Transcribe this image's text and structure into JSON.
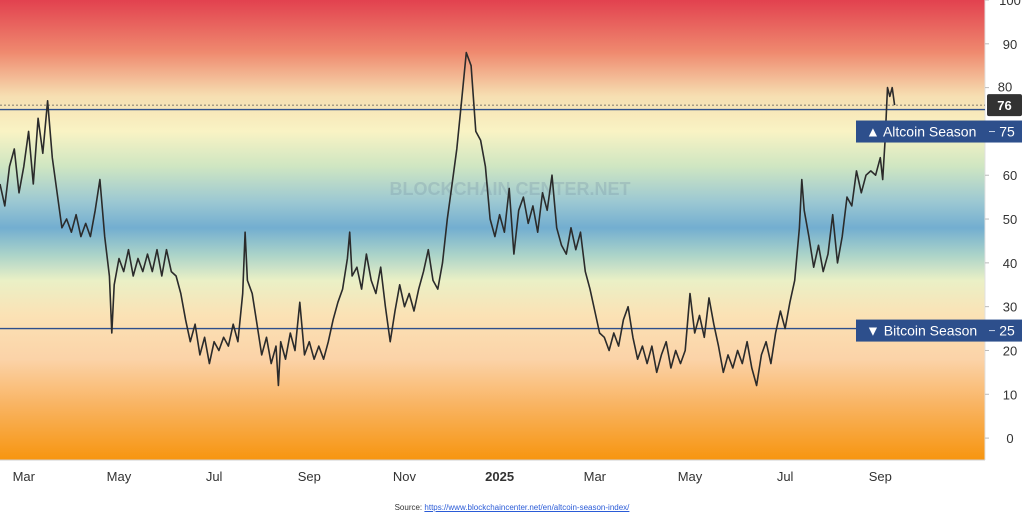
{
  "chart_data": {
    "type": "line",
    "title": "",
    "xlabel": "",
    "ylabel": "",
    "ylim": [
      -5,
      100
    ],
    "yticks": [
      0,
      10,
      20,
      30,
      40,
      50,
      60,
      70,
      80,
      90,
      100
    ],
    "xticks": [
      {
        "label": "Mar",
        "x": 0.2
      },
      {
        "label": "May",
        "x": 2.2
      },
      {
        "label": "Jul",
        "x": 4.2
      },
      {
        "label": "Sep",
        "x": 6.2
      },
      {
        "label": "Nov",
        "x": 8.2
      },
      {
        "label": "2025",
        "x": 10.2,
        "bold": true
      },
      {
        "label": "Mar",
        "x": 12.2
      },
      {
        "label": "May",
        "x": 14.2
      },
      {
        "label": "Jul",
        "x": 16.2
      },
      {
        "label": "Sep",
        "x": 18.2
      }
    ],
    "xlim": [
      -0.3,
      20.4
    ],
    "series": [
      {
        "values": [
          [
            -0.3,
            58
          ],
          [
            -0.2,
            53
          ],
          [
            -0.1,
            62
          ],
          [
            0.0,
            66
          ],
          [
            0.1,
            56
          ],
          [
            0.2,
            62
          ],
          [
            0.3,
            70
          ],
          [
            0.4,
            58
          ],
          [
            0.5,
            73
          ],
          [
            0.6,
            65
          ],
          [
            0.7,
            77
          ],
          [
            0.8,
            64
          ],
          [
            0.9,
            56
          ],
          [
            1.0,
            48
          ],
          [
            1.1,
            50
          ],
          [
            1.2,
            47
          ],
          [
            1.3,
            51
          ],
          [
            1.4,
            46
          ],
          [
            1.5,
            49
          ],
          [
            1.6,
            46
          ],
          [
            1.7,
            52
          ],
          [
            1.8,
            59
          ],
          [
            1.9,
            46
          ],
          [
            2.0,
            37
          ],
          [
            2.05,
            24
          ],
          [
            2.1,
            35
          ],
          [
            2.2,
            41
          ],
          [
            2.3,
            38
          ],
          [
            2.4,
            43
          ],
          [
            2.5,
            37
          ],
          [
            2.6,
            41
          ],
          [
            2.7,
            38
          ],
          [
            2.8,
            42
          ],
          [
            2.9,
            38
          ],
          [
            3.0,
            43
          ],
          [
            3.1,
            37
          ],
          [
            3.2,
            43
          ],
          [
            3.3,
            38
          ],
          [
            3.4,
            37
          ],
          [
            3.5,
            33
          ],
          [
            3.6,
            27
          ],
          [
            3.7,
            22
          ],
          [
            3.8,
            26
          ],
          [
            3.9,
            19
          ],
          [
            4.0,
            23
          ],
          [
            4.1,
            17
          ],
          [
            4.2,
            22
          ],
          [
            4.3,
            20
          ],
          [
            4.4,
            23
          ],
          [
            4.5,
            21
          ],
          [
            4.6,
            26
          ],
          [
            4.7,
            22
          ],
          [
            4.8,
            33
          ],
          [
            4.85,
            47
          ],
          [
            4.9,
            36
          ],
          [
            5.0,
            33
          ],
          [
            5.1,
            26
          ],
          [
            5.2,
            19
          ],
          [
            5.3,
            23
          ],
          [
            5.4,
            17
          ],
          [
            5.5,
            21
          ],
          [
            5.55,
            12
          ],
          [
            5.6,
            22
          ],
          [
            5.7,
            18
          ],
          [
            5.8,
            24
          ],
          [
            5.9,
            20
          ],
          [
            6.0,
            31
          ],
          [
            6.1,
            19
          ],
          [
            6.2,
            22
          ],
          [
            6.3,
            18
          ],
          [
            6.4,
            21
          ],
          [
            6.5,
            18
          ],
          [
            6.6,
            22
          ],
          [
            6.7,
            27
          ],
          [
            6.8,
            31
          ],
          [
            6.9,
            34
          ],
          [
            7.0,
            41
          ],
          [
            7.05,
            47
          ],
          [
            7.1,
            37
          ],
          [
            7.2,
            39
          ],
          [
            7.3,
            34
          ],
          [
            7.4,
            42
          ],
          [
            7.5,
            36
          ],
          [
            7.6,
            33
          ],
          [
            7.7,
            39
          ],
          [
            7.8,
            30
          ],
          [
            7.9,
            22
          ],
          [
            8.0,
            29
          ],
          [
            8.1,
            35
          ],
          [
            8.2,
            30
          ],
          [
            8.3,
            33
          ],
          [
            8.4,
            29
          ],
          [
            8.5,
            34
          ],
          [
            8.6,
            38
          ],
          [
            8.7,
            43
          ],
          [
            8.8,
            36
          ],
          [
            8.9,
            34
          ],
          [
            9.0,
            40
          ],
          [
            9.1,
            50
          ],
          [
            9.2,
            58
          ],
          [
            9.3,
            66
          ],
          [
            9.4,
            77
          ],
          [
            9.5,
            88
          ],
          [
            9.6,
            85
          ],
          [
            9.7,
            70
          ],
          [
            9.8,
            68
          ],
          [
            9.9,
            62
          ],
          [
            10.0,
            50
          ],
          [
            10.1,
            46
          ],
          [
            10.2,
            51
          ],
          [
            10.3,
            47
          ],
          [
            10.4,
            57
          ],
          [
            10.5,
            42
          ],
          [
            10.6,
            52
          ],
          [
            10.7,
            55
          ],
          [
            10.8,
            49
          ],
          [
            10.9,
            53
          ],
          [
            11.0,
            47
          ],
          [
            11.1,
            56
          ],
          [
            11.2,
            52
          ],
          [
            11.3,
            60
          ],
          [
            11.4,
            48
          ],
          [
            11.5,
            44
          ],
          [
            11.6,
            42
          ],
          [
            11.7,
            48
          ],
          [
            11.8,
            43
          ],
          [
            11.9,
            47
          ],
          [
            12.0,
            38
          ],
          [
            12.1,
            34
          ],
          [
            12.2,
            29
          ],
          [
            12.3,
            24
          ],
          [
            12.4,
            23
          ],
          [
            12.5,
            20
          ],
          [
            12.6,
            24
          ],
          [
            12.7,
            21
          ],
          [
            12.8,
            27
          ],
          [
            12.9,
            30
          ],
          [
            13.0,
            23
          ],
          [
            13.1,
            18
          ],
          [
            13.2,
            21
          ],
          [
            13.3,
            17
          ],
          [
            13.4,
            21
          ],
          [
            13.5,
            15
          ],
          [
            13.6,
            19
          ],
          [
            13.7,
            22
          ],
          [
            13.8,
            16
          ],
          [
            13.9,
            20
          ],
          [
            14.0,
            17
          ],
          [
            14.1,
            20
          ],
          [
            14.2,
            33
          ],
          [
            14.3,
            24
          ],
          [
            14.4,
            28
          ],
          [
            14.5,
            23
          ],
          [
            14.6,
            32
          ],
          [
            14.7,
            26
          ],
          [
            14.8,
            21
          ],
          [
            14.9,
            15
          ],
          [
            15.0,
            19
          ],
          [
            15.1,
            16
          ],
          [
            15.2,
            20
          ],
          [
            15.3,
            17
          ],
          [
            15.4,
            22
          ],
          [
            15.5,
            16
          ],
          [
            15.6,
            12
          ],
          [
            15.7,
            19
          ],
          [
            15.8,
            22
          ],
          [
            15.9,
            17
          ],
          [
            16.0,
            24
          ],
          [
            16.1,
            29
          ],
          [
            16.2,
            25
          ],
          [
            16.3,
            31
          ],
          [
            16.4,
            36
          ],
          [
            16.5,
            48
          ],
          [
            16.55,
            59
          ],
          [
            16.6,
            52
          ],
          [
            16.7,
            46
          ],
          [
            16.8,
            39
          ],
          [
            16.9,
            44
          ],
          [
            17.0,
            38
          ],
          [
            17.1,
            42
          ],
          [
            17.2,
            51
          ],
          [
            17.3,
            40
          ],
          [
            17.4,
            46
          ],
          [
            17.5,
            55
          ],
          [
            17.6,
            53
          ],
          [
            17.7,
            61
          ],
          [
            17.8,
            56
          ],
          [
            17.9,
            60
          ],
          [
            18.0,
            61
          ],
          [
            18.1,
            60
          ],
          [
            18.2,
            64
          ],
          [
            18.25,
            59
          ],
          [
            18.3,
            68
          ],
          [
            18.35,
            80
          ],
          [
            18.4,
            78
          ],
          [
            18.45,
            80
          ],
          [
            18.5,
            76
          ]
        ]
      }
    ],
    "reference_lines": [
      {
        "value": 75,
        "label": "Altcoin Season",
        "symbol": "▲",
        "value_label": "75"
      },
      {
        "value": 25,
        "label": "Bitcoin Season",
        "symbol": "▼",
        "value_label": "25"
      }
    ],
    "current_value": {
      "value": 76,
      "label": "76"
    },
    "background_gradient": [
      {
        "value": 100,
        "color": "#e2414f"
      },
      {
        "value": 88,
        "color": "#ef8a6f"
      },
      {
        "value": 78,
        "color": "#f6dfb2"
      },
      {
        "value": 70,
        "color": "#f9f3c4"
      },
      {
        "value": 62,
        "color": "#cfe6c2"
      },
      {
        "value": 54,
        "color": "#9cc8d2"
      },
      {
        "value": 48,
        "color": "#73aed0"
      },
      {
        "value": 42,
        "color": "#a9d2c9"
      },
      {
        "value": 36,
        "color": "#eaf0c6"
      },
      {
        "value": 28,
        "color": "#fbe2b5"
      },
      {
        "value": 18,
        "color": "#fbd3a8"
      },
      {
        "value": 8,
        "color": "#f9b565"
      },
      {
        "value": -5,
        "color": "#f7950f"
      }
    ],
    "colors": {
      "line": "#2b2b2b",
      "ref_line": "#2d4f8c",
      "tag_bg": "#2d4f8c",
      "tag_text": "#ffffff",
      "axis_text": "#333333",
      "current_tag_bg": "#333333"
    },
    "watermark": "BLOCKCHAIN CENTER.NET",
    "grid": false
  },
  "source": {
    "prefix": "Source:",
    "url": "https://www.blockchaincenter.net/en/altcoin-season-index/"
  }
}
